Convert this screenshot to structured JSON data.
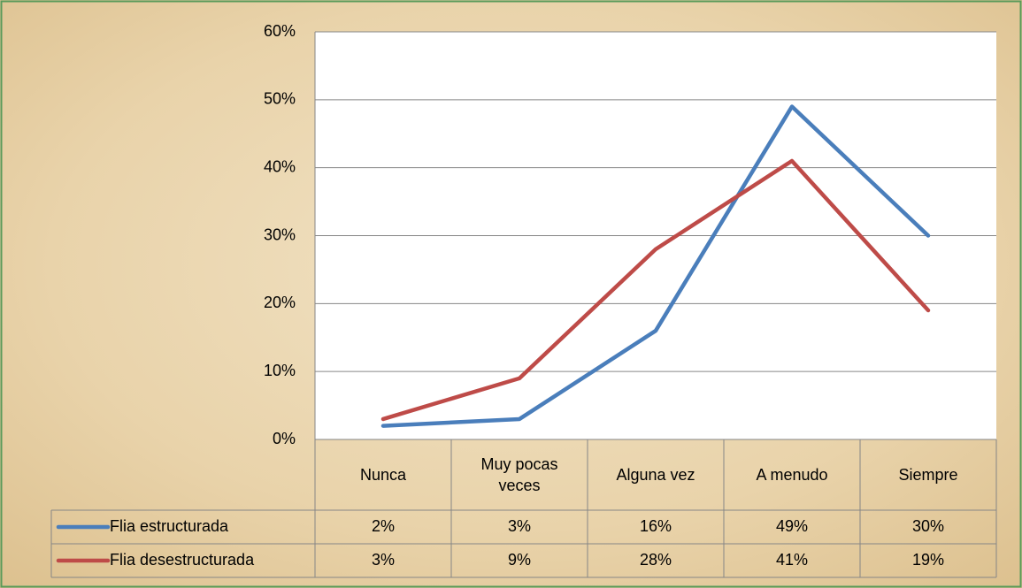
{
  "chart_data": {
    "type": "line",
    "categories": [
      "Nunca",
      "Muy pocas veces",
      "Alguna vez",
      "A menudo",
      "Siempre"
    ],
    "series": [
      {
        "name": "Flia estructurada",
        "color": "#4a7ebb",
        "values": [
          2,
          3,
          16,
          49,
          30
        ],
        "value_labels": [
          "2%",
          "3%",
          "16%",
          "49%",
          "30%"
        ]
      },
      {
        "name": "Flia desestructurada",
        "color": "#be4b48",
        "values": [
          3,
          9,
          28,
          41,
          19
        ],
        "value_labels": [
          "3%",
          "9%",
          "28%",
          "41%",
          "19%"
        ]
      }
    ],
    "ylim": [
      0,
      60
    ],
    "yticks": [
      {
        "value": 0,
        "label": "0%"
      },
      {
        "value": 10,
        "label": "10%"
      },
      {
        "value": 20,
        "label": "20%"
      },
      {
        "value": 30,
        "label": "30%"
      },
      {
        "value": 40,
        "label": "40%"
      },
      {
        "value": 50,
        "label": "50%"
      },
      {
        "value": 60,
        "label": "60%"
      }
    ],
    "grid": true
  }
}
